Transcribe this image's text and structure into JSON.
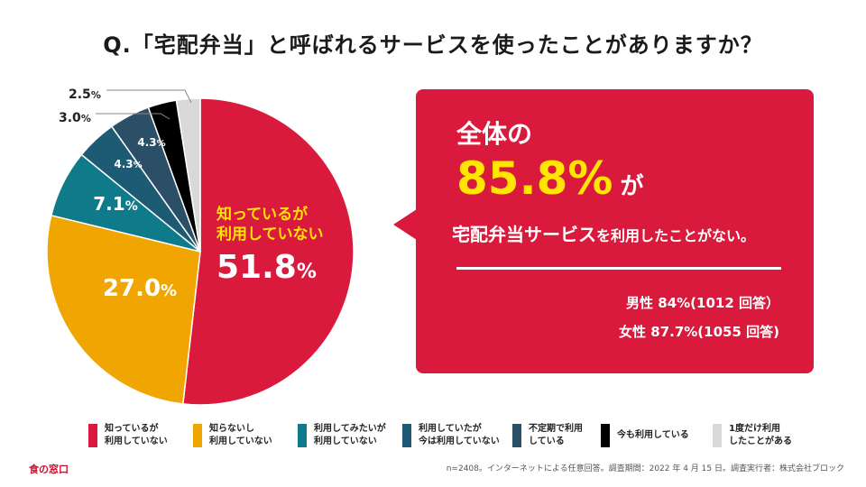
{
  "title": "Q.「宅配弁当」と呼ばれるサービスを使ったことがありますか？",
  "chart_data": {
    "type": "pie",
    "categories": [
      "知っているが利用していない",
      "知らないし利用していない",
      "利用してみたいが利用していない",
      "利用していたが今は利用していない",
      "不定期で利用している",
      "今も利用している",
      "1度だけ利用したことがある"
    ],
    "values": [
      51.8,
      27.0,
      7.1,
      4.3,
      4.3,
      3.0,
      2.5
    ],
    "unit": "%",
    "colors": [
      "#d91a3c",
      "#f0a500",
      "#0f7a8a",
      "#1d5a73",
      "#2b4f66",
      "#000000",
      "#d9d9d9"
    ],
    "slice_labels": [
      "知っているが\n利用していない\n51.8",
      "27.0",
      "7.1",
      "4.3",
      "4.3",
      "3.0",
      "2.5"
    ],
    "legend_placement": "bottom",
    "legend": [
      "知っているが\n利用していない",
      "知らないし\n利用していない",
      "利用してみたいが\n利用していない",
      "利用していたが\n今は利用していない",
      "不定期で利用\nしている",
      "今も利用している",
      "1度だけ利用\nしたことがある"
    ]
  },
  "callout": {
    "line1": "全体の",
    "big": "85.8%",
    "ga": "が",
    "line3a": "宅配弁当サービス",
    "line3b": "を利用したことがない。",
    "male": "男性 84%(1012 回答）",
    "female": "女性 87.7%(1055 回答)"
  },
  "footer": {
    "brand": "食の窓口",
    "note": "n=2408。インターネットによる任意回答。調査期間：2022 年 4 月 15 日。調査実行者：株式会社ブロック"
  }
}
